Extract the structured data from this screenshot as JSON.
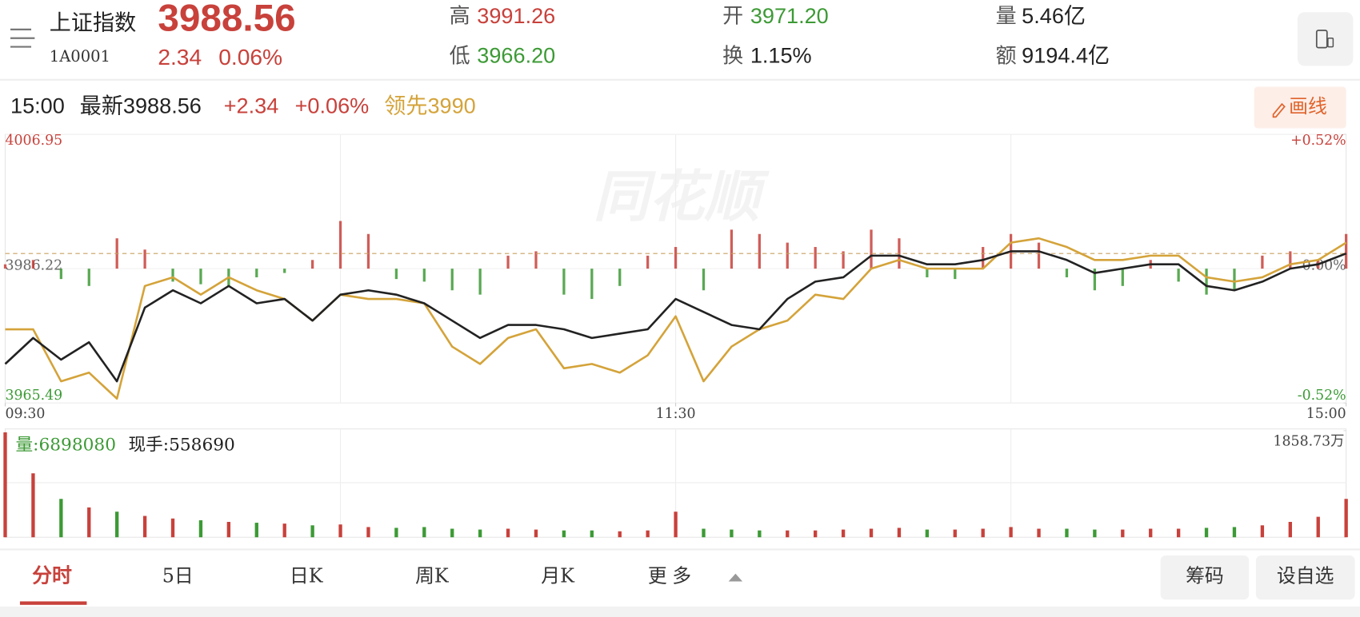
{
  "header": {
    "name": "上证指数",
    "code": "1A0001",
    "price": "3988.56",
    "change": "2.34",
    "change_pct": "0.06%",
    "stats": [
      {
        "label": "高",
        "value": "3991.26"
      },
      {
        "label": "低",
        "value": "3966.20"
      },
      {
        "label": "开",
        "value": "3971.20"
      },
      {
        "label": "换",
        "value": "1.15%"
      },
      {
        "label": "量",
        "value": "5.46亿"
      },
      {
        "label": "额",
        "value": "9194.4亿"
      }
    ]
  },
  "quote_bar": {
    "time": "15:00",
    "latest": "最新3988.56",
    "change": "+2.34",
    "change_pct": "+0.06%",
    "lead": "领先3990",
    "draw_button": "画线"
  },
  "chart_data": [
    {
      "type": "line",
      "watermark": "同花顺",
      "x": [
        0,
        5,
        10,
        15,
        20,
        25,
        30,
        35,
        40,
        45,
        50,
        55,
        60,
        65,
        70,
        75,
        80,
        85,
        90,
        95,
        100,
        105,
        110,
        115,
        120,
        125,
        130,
        135,
        140,
        145,
        150,
        155,
        160,
        165,
        170,
        175,
        180,
        185,
        190,
        195,
        200,
        205,
        210,
        215,
        220,
        225,
        230,
        235,
        240
      ],
      "xlim": [
        0,
        240
      ],
      "xticks": [
        {
          "value": 0,
          "label": "09:30"
        },
        {
          "value": 120,
          "label": "11:30"
        },
        {
          "value": 240,
          "label": "15:00"
        }
      ],
      "xgrid": [
        60,
        120,
        180
      ],
      "ylim": [
        3965.49,
        4006.95
      ],
      "yticks": [
        4006.95,
        3986.22,
        3965.49
      ],
      "y2lim": [
        -0.52,
        0.52
      ],
      "y2ticks": [
        {
          "value": 0.52,
          "label": "+0.52%"
        },
        {
          "value": 0,
          "label": "0.00%"
        },
        {
          "value": -0.52,
          "label": "-0.52%"
        }
      ],
      "last_price_line": 3988.56,
      "series": [
        {
          "color": "#222222",
          "values": [
            3971.51,
            3975.52,
            3972.18,
            3974.85,
            3968.83,
            3980.2,
            3982.88,
            3980.87,
            3983.55,
            3980.87,
            3981.54,
            3978.2,
            3982.21,
            3982.88,
            3982.21,
            3980.87,
            3978.2,
            3975.52,
            3977.53,
            3977.53,
            3976.86,
            3975.52,
            3976.19,
            3976.86,
            3981.54,
            3979.53,
            3977.53,
            3976.86,
            3981.54,
            3984.21,
            3984.88,
            3988.23,
            3988.23,
            3986.89,
            3986.89,
            3987.56,
            3988.89,
            3988.89,
            3987.56,
            3985.55,
            3986.22,
            3986.89,
            3986.89,
            3983.55,
            3982.88,
            3984.21,
            3986.22,
            3986.89,
            3988.56
          ]
        },
        {
          "color": "#d4a33a",
          "values": [
            3976.86,
            3976.86,
            3968.83,
            3970.17,
            3966.16,
            3983.55,
            3984.88,
            3982.21,
            3984.88,
            3982.88,
            3981.54,
            3978.2,
            3982.21,
            3981.54,
            3981.54,
            3980.87,
            3974.18,
            3971.51,
            3975.52,
            3976.86,
            3970.84,
            3971.51,
            3970.17,
            3972.85,
            3978.86,
            3968.83,
            3974.18,
            3976.86,
            3978.2,
            3982.21,
            3981.54,
            3986.22,
            3987.56,
            3986.22,
            3986.22,
            3986.22,
            3990.23,
            3990.9,
            3989.56,
            3987.56,
            3987.56,
            3988.23,
            3988.23,
            3984.88,
            3984.21,
            3984.88,
            3986.89,
            3987.56,
            3990.23
          ]
        }
      ],
      "strength": [
        5,
        10,
        -12,
        -20,
        35,
        22,
        -15,
        -18,
        -20,
        -10,
        -5,
        10,
        55,
        40,
        -12,
        -15,
        -25,
        -30,
        15,
        20,
        -30,
        -35,
        -20,
        15,
        25,
        -25,
        45,
        40,
        30,
        25,
        20,
        45,
        35,
        -10,
        -12,
        25,
        40,
        30,
        -10,
        -25,
        -20,
        10,
        -15,
        -30,
        -25,
        15,
        20,
        10,
        40
      ],
      "colors": {
        "up": "#c8413b",
        "down": "#3c9a35"
      }
    },
    {
      "type": "bar",
      "volume_label": "量:6898080",
      "current_label": "现手:558690",
      "x": [
        0,
        5,
        10,
        15,
        20,
        25,
        30,
        35,
        40,
        45,
        50,
        55,
        60,
        65,
        70,
        75,
        80,
        85,
        90,
        95,
        100,
        105,
        110,
        115,
        120,
        125,
        130,
        135,
        140,
        145,
        150,
        155,
        160,
        165,
        170,
        175,
        180,
        185,
        190,
        195,
        200,
        205,
        210,
        215,
        220,
        225,
        230,
        235,
        240
      ],
      "xlim": [
        0,
        240
      ],
      "ylim": [
        0,
        1858.73
      ],
      "yticks": [
        {
          "value": 1858.73,
          "label": "1858.73万"
        }
      ],
      "values": [
        1830,
        1115,
        669,
        520,
        446,
        372,
        327,
        297,
        268,
        253,
        238,
        208,
        223,
        178,
        164,
        178,
        149,
        134,
        149,
        134,
        119,
        119,
        104,
        119,
        446,
        149,
        134,
        119,
        119,
        119,
        134,
        149,
        164,
        134,
        134,
        149,
        178,
        149,
        149,
        134,
        134,
        149,
        149,
        164,
        178,
        208,
        268,
        357,
        669
      ]
    }
  ],
  "tabs": [
    "分时",
    "5日",
    "日K",
    "周K",
    "月K",
    "更多"
  ],
  "buttons": [
    "筹码",
    "设自选"
  ]
}
